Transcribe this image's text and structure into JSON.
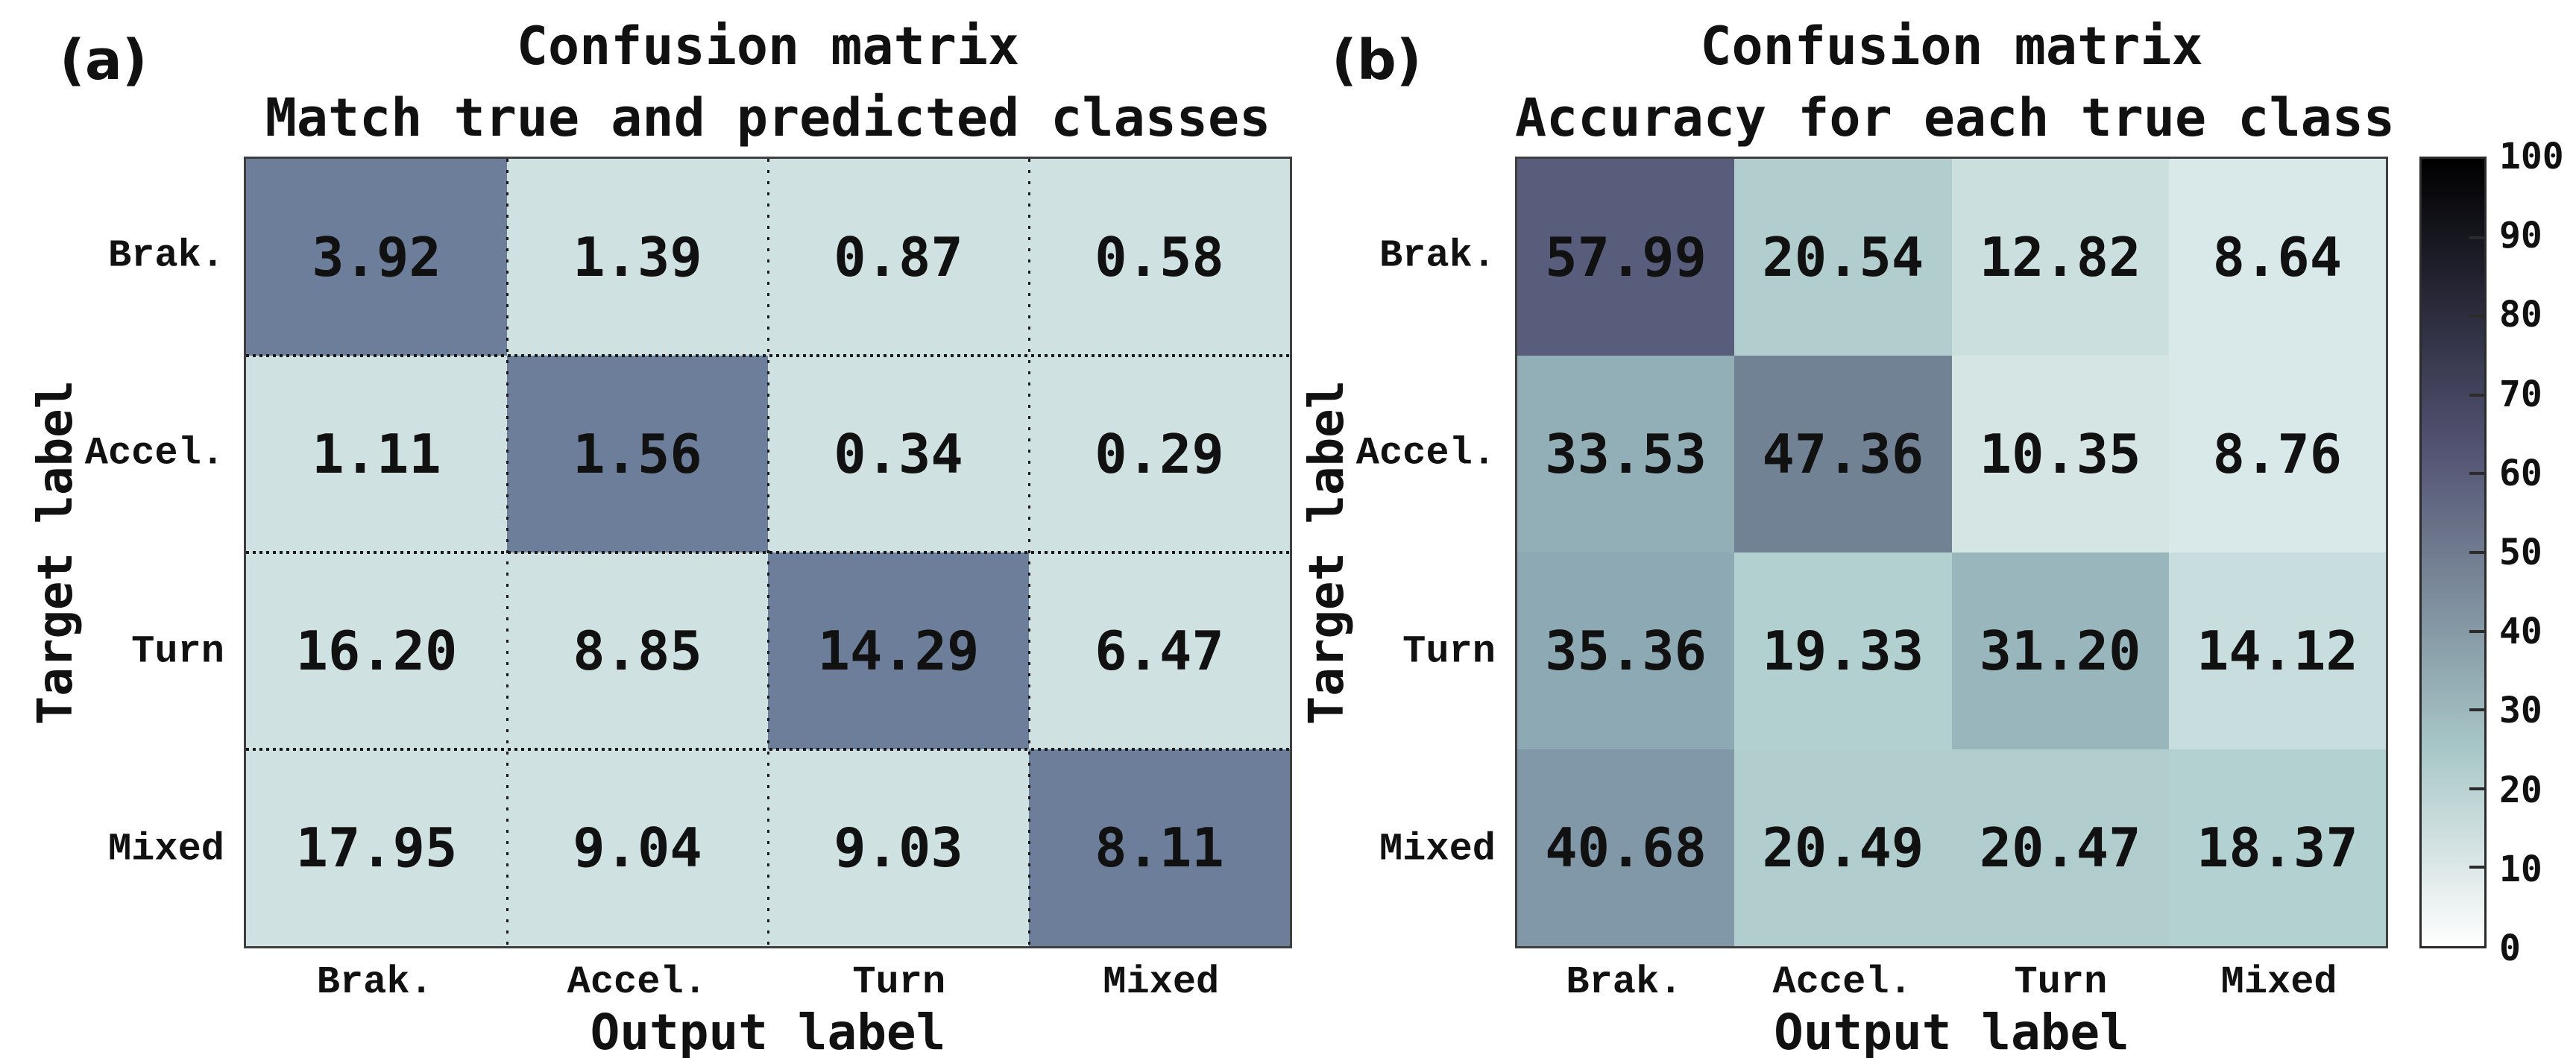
{
  "figure": {
    "background": "#FFFFFF",
    "text_color": "#111111"
  },
  "panels": [
    {
      "corner_label": "(a)",
      "title_line1": "Confusion matrix",
      "title_line2": "Match true and predicted classes",
      "xlabel": "Output label",
      "ylabel": "Target label",
      "x_ticks": [
        "Brak.",
        "Accel.",
        "Turn",
        "Mixed"
      ],
      "y_ticks": [
        "Brak.",
        "Accel.",
        "Turn",
        "Mixed"
      ],
      "cell_labels": [
        [
          "3.92",
          "1.39",
          "0.87",
          "0.58"
        ],
        [
          "1.11",
          "1.56",
          "0.34",
          "0.29"
        ],
        [
          "16.20",
          "8.85",
          "14.29",
          "6.47"
        ],
        [
          "17.95",
          "9.04",
          "9.03",
          "8.11"
        ]
      ],
      "cell_colors": [
        [
          "#6C7E9A",
          "#CFE2E1",
          "#CFE2E1",
          "#CFE2E1"
        ],
        [
          "#CFE2E1",
          "#6C7E9A",
          "#CFE2E1",
          "#CFE2E1"
        ],
        [
          "#CFE2E1",
          "#CFE2E1",
          "#6C7E9A",
          "#CFE2E1"
        ],
        [
          "#CFE2E1",
          "#CFE2E1",
          "#CFE2E1",
          "#6C7E9A"
        ]
      ],
      "dotted_grid": true
    },
    {
      "corner_label": "(b)",
      "title_line1": "Confusion matrix",
      "title_line2": "Accuracy for each true class",
      "xlabel": "Output label",
      "ylabel": "Target label",
      "x_ticks": [
        "Brak.",
        "Accel.",
        "Turn",
        "Mixed"
      ],
      "y_ticks": [
        "Brak.",
        "Accel.",
        "Turn",
        "Mixed"
      ],
      "cell_labels": [
        [
          "57.99",
          "20.54",
          "12.82",
          "8.64"
        ],
        [
          "33.53",
          "47.36",
          "10.35",
          "8.76"
        ],
        [
          "35.36",
          "19.33",
          "31.20",
          "14.12"
        ],
        [
          "40.68",
          "20.49",
          "20.47",
          "18.37"
        ]
      ],
      "cell_colors": [
        [
          "#585D7C",
          "#B2CDCD",
          "#CADFDE",
          "#D9E8E8"
        ],
        [
          "#92AFB8",
          "#728295",
          "#D4E5E4",
          "#D9E8E8"
        ],
        [
          "#8CA9B4",
          "#B2D0D0",
          "#98B6BC",
          "#C8DEDE"
        ],
        [
          "#8198A8",
          "#B2CDCD",
          "#B2CDCD",
          "#B4D1D1"
        ]
      ],
      "dotted_grid": false
    }
  ],
  "colorbar": {
    "tick_labels": [
      "0",
      "10",
      "20",
      "30",
      "40",
      "50",
      "60",
      "70",
      "80",
      "90",
      "100"
    ],
    "tick_values": [
      0,
      10,
      20,
      30,
      40,
      50,
      60,
      70,
      80,
      90,
      100
    ],
    "mark_values": [
      10,
      20,
      30,
      40,
      50,
      60,
      70,
      80,
      90
    ],
    "gradient_stops": [
      {
        "value": 0,
        "color": "#FFFFFF"
      },
      {
        "value": 12.5,
        "color": "#D4E2E2"
      },
      {
        "value": 25,
        "color": "#A8C7C7"
      },
      {
        "value": 37.5,
        "color": "#8BA1AB"
      },
      {
        "value": 50,
        "color": "#707B90"
      },
      {
        "value": 62.5,
        "color": "#545574"
      },
      {
        "value": 75,
        "color": "#38384E"
      },
      {
        "value": 87.5,
        "color": "#1C1C27"
      },
      {
        "value": 100,
        "color": "#000000"
      }
    ]
  },
  "chart_data": [
    {
      "type": "heatmap",
      "panel": "(a)",
      "title": "Confusion matrix",
      "subtitle": "Match true and predicted classes",
      "xlabel": "Output label",
      "ylabel": "Target label",
      "columns": [
        "Brak.",
        "Accel.",
        "Turn",
        "Mixed"
      ],
      "rows": [
        "Brak.",
        "Accel.",
        "Turn",
        "Mixed"
      ],
      "values": [
        [
          3.92,
          1.39,
          0.87,
          0.58
        ],
        [
          1.11,
          1.56,
          0.34,
          0.29
        ],
        [
          16.2,
          8.85,
          14.29,
          6.47
        ],
        [
          17.95,
          9.04,
          9.03,
          8.11
        ]
      ],
      "colormap": "bone_r",
      "colorbar_range": [
        0,
        100
      ],
      "grid": "dotted",
      "legend_position": "shared colorbar right"
    },
    {
      "type": "heatmap",
      "panel": "(b)",
      "title": "Confusion matrix",
      "subtitle": "Accuracy for each true class",
      "xlabel": "Output label",
      "ylabel": "Target label",
      "columns": [
        "Brak.",
        "Accel.",
        "Turn",
        "Mixed"
      ],
      "rows": [
        "Brak.",
        "Accel.",
        "Turn",
        "Mixed"
      ],
      "values": [
        [
          57.99,
          20.54,
          12.82,
          8.64
        ],
        [
          33.53,
          47.36,
          10.35,
          8.76
        ],
        [
          35.36,
          19.33,
          31.2,
          14.12
        ],
        [
          40.68,
          20.49,
          20.47,
          18.37
        ]
      ],
      "colormap": "bone_r",
      "colorbar_range": [
        0,
        100
      ],
      "grid": "none",
      "legend_position": "shared colorbar right"
    }
  ]
}
